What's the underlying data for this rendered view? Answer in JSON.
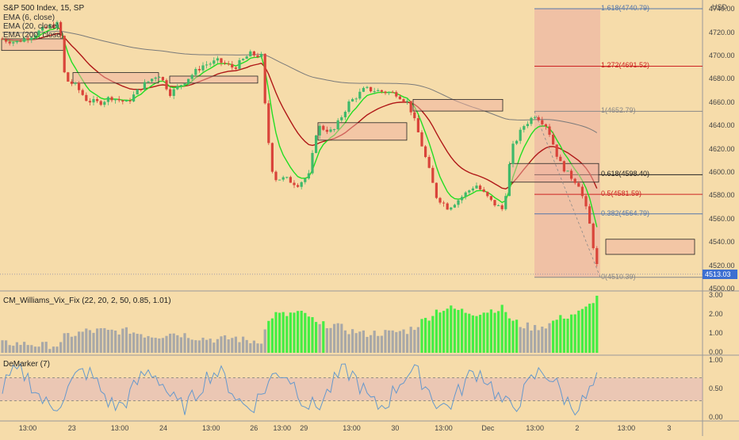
{
  "chart_data": [
    {
      "type": "candlestick",
      "title": "S&P 500 Index, 15, SP",
      "currency": "USD",
      "indicators": [
        {
          "name": "EMA (6, close)",
          "color": "#22dd22"
        },
        {
          "name": "EMA (20, close)",
          "color": "#b01818"
        },
        {
          "name": "EMA (200, close)",
          "color": "#7a7a7a"
        }
      ],
      "ylim": [
        4500,
        4760
      ],
      "y_ticks": [
        "4740.00",
        "4720.00",
        "4700.00",
        "4680.00",
        "4660.00",
        "4640.00",
        "4620.00",
        "4600.00",
        "4580.00",
        "4560.00",
        "4540.00",
        "4520.00",
        "4500.00"
      ],
      "last_price": "4513.03",
      "fib_levels": [
        {
          "label": "1.618(4740.79)",
          "value": 4740.79,
          "color": "#5577aa"
        },
        {
          "label": "1.272(4691.52)",
          "value": 4691.52,
          "color": "#cc2222"
        },
        {
          "label": "1(4652.79)",
          "value": 4652.79,
          "color": "#888888"
        },
        {
          "label": "0.618(4598.40)",
          "value": 4598.4,
          "color": "#222222"
        },
        {
          "label": "0.5(4581.59)",
          "value": 4581.59,
          "color": "#cc2222"
        },
        {
          "label": "0.382(4564.79)",
          "value": 4564.79,
          "color": "#5577aa"
        },
        {
          "label": "0(4510.39)",
          "value": 4510.39,
          "color": "#888888"
        }
      ]
    },
    {
      "type": "bar",
      "title": "CM_Williams_Vix_Fix (22, 20, 2, 50, 0.85, 1.01)",
      "ylim": [
        0,
        3
      ],
      "y_ticks": [
        "3.00",
        "2.00",
        "1.00",
        "0.00"
      ]
    },
    {
      "type": "line",
      "title": "DeMarker (7)",
      "ylim": [
        0,
        1
      ],
      "y_ticks": [
        "1.00",
        "0.50",
        "0.00"
      ],
      "band": [
        0.3,
        0.7
      ]
    }
  ],
  "x_ticks": [
    {
      "label": "13:00",
      "pos": 0.035
    },
    {
      "label": "23",
      "pos": 0.098
    },
    {
      "label": "13:00",
      "pos": 0.166
    },
    {
      "label": "24",
      "pos": 0.228
    },
    {
      "label": "13:00",
      "pos": 0.296
    },
    {
      "label": "26",
      "pos": 0.357
    },
    {
      "label": "13:00",
      "pos": 0.397
    },
    {
      "label": "29",
      "pos": 0.428
    },
    {
      "label": "13:00",
      "pos": 0.496
    },
    {
      "label": "30",
      "pos": 0.558
    },
    {
      "label": "13:00",
      "pos": 0.627
    },
    {
      "label": "Dec",
      "pos": 0.69
    },
    {
      "label": "13:00",
      "pos": 0.757
    },
    {
      "label": "2",
      "pos": 0.817
    },
    {
      "label": "13:00",
      "pos": 0.887
    },
    {
      "label": "3",
      "pos": 0.948
    }
  ]
}
